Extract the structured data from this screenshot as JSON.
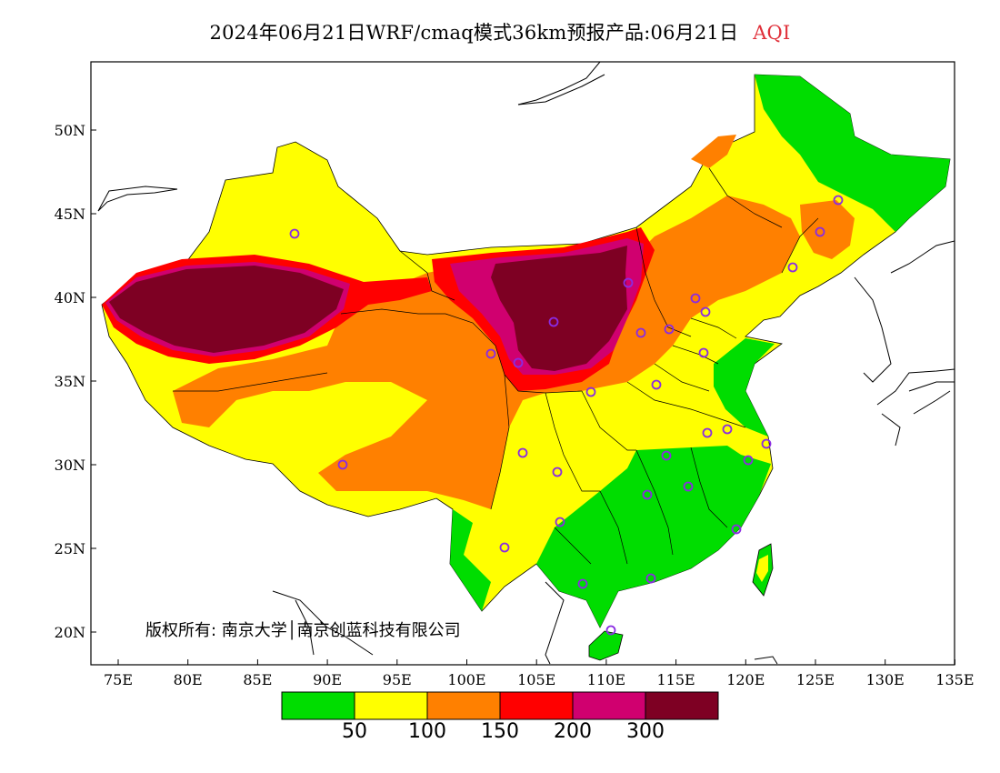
{
  "title": {
    "main": "2024年06月21日WRF/cmaq模式36km预报产品:06月21日",
    "field": "AQI"
  },
  "axes": {
    "x_ticks": [
      "75E",
      "80E",
      "85E",
      "90E",
      "95E",
      "100E",
      "105E",
      "110E",
      "115E",
      "120E",
      "125E",
      "130E",
      "135E"
    ],
    "y_ticks": [
      "50N",
      "45N",
      "40N",
      "35N",
      "30N",
      "25N",
      "20N"
    ]
  },
  "copyright": "版权所有: 南京大学│南京创蓝科技有限公司",
  "legend": {
    "colors": [
      "#00dd00",
      "#ffff00",
      "#ff8000",
      "#ff0000",
      "#d0006f",
      "#7e0023"
    ],
    "labels": [
      "50",
      "100",
      "150",
      "200",
      "300"
    ]
  },
  "colors": {
    "land_good": "#00dd00",
    "land_moderate": "#ffff00",
    "land_usg": "#ff8000",
    "land_unhealthy": "#ff0000",
    "land_very_unhealthy": "#d0006f",
    "land_hazardous": "#7e0023",
    "station_marker": "#8a2be2"
  },
  "stations_label": "monitoring-station-markers"
}
